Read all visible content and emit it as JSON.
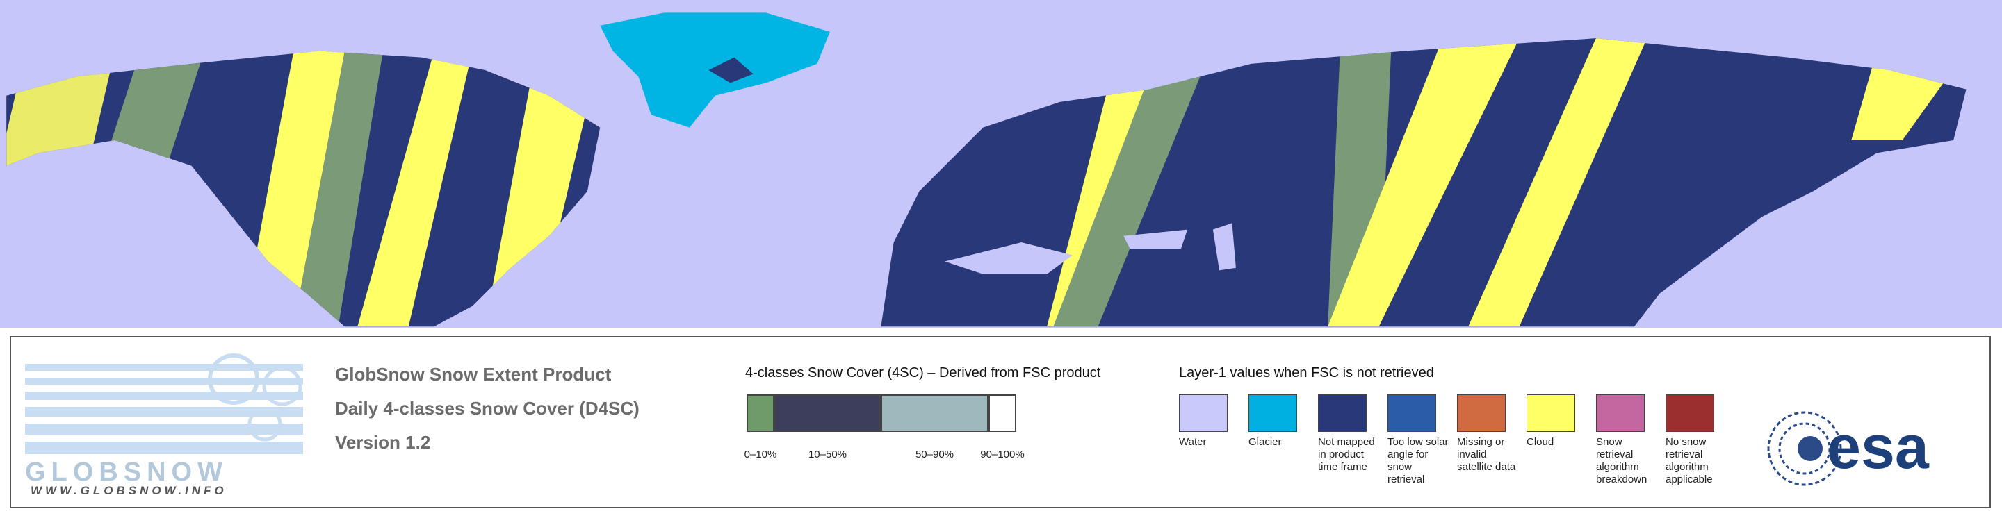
{
  "logo": {
    "name": "GLOBSNOW",
    "url": "WWW.GLOBSNOW.INFO"
  },
  "product": {
    "lines": [
      "GlobSnow Snow Extent Product",
      "Daily 4-classes Snow Cover (D4SC)",
      "Version 1.2"
    ]
  },
  "snow_cover_legend": {
    "title": "4-classes Snow Cover (4SC) – Derived from FSC product",
    "classes": [
      {
        "label": "0–10%",
        "color": "#6f9a6a"
      },
      {
        "label": "10–50%",
        "color": "#3d3d5c"
      },
      {
        "label": "50–90%",
        "color": "#9fb8bd"
      },
      {
        "label": "90–100%",
        "color": "#ffffff"
      }
    ]
  },
  "layer1_legend": {
    "title": "Layer-1 values when FSC is not retrieved",
    "items": [
      {
        "label": "Water",
        "color": "#c9c9fc"
      },
      {
        "label": "Glacier",
        "color": "#00b0e0"
      },
      {
        "label": "Not mapped in product time frame",
        "color": "#283878"
      },
      {
        "label": "Too low solar angle for snow retrieval",
        "color": "#2a5ca8"
      },
      {
        "label": "Missing or invalid satellite data",
        "color": "#d06a40"
      },
      {
        "label": "Cloud",
        "color": "#ffff66"
      },
      {
        "label": "Snow retrieval algorithm breakdown",
        "color": "#c466a0"
      },
      {
        "label": "No snow retrieval algorithm applicable",
        "color": "#9b2f2f"
      }
    ]
  },
  "agency": "esa"
}
